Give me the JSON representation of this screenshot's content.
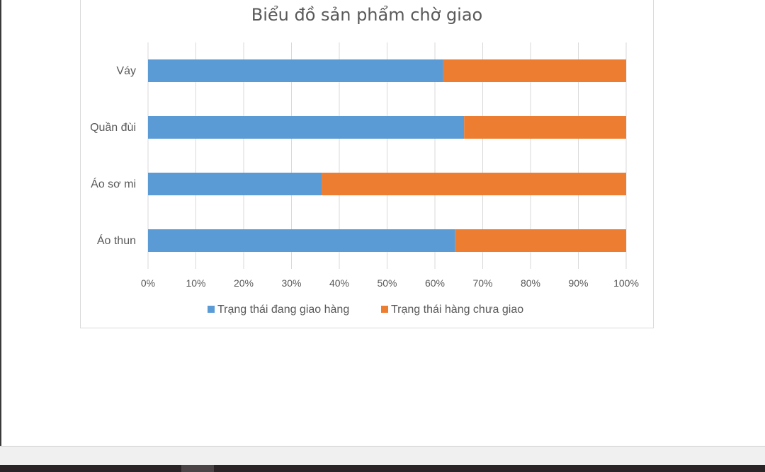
{
  "chart_data": {
    "type": "bar",
    "orientation": "horizontal",
    "stacked": "percent",
    "title": "Biểu đồ sản phẩm chờ giao",
    "categories": [
      "Váy",
      "Quần đùi",
      "Áo sơ mi",
      "Áo thun"
    ],
    "series": [
      {
        "name": "Trạng thái đang giao hàng",
        "color": "#5b9bd5",
        "values": [
          61.7,
          66.1,
          36.3,
          64.2
        ]
      },
      {
        "name": "Trạng thái hàng chưa giao",
        "color": "#ed7d31",
        "values": [
          38.3,
          33.9,
          63.7,
          35.8
        ]
      }
    ],
    "x_ticks": [
      "0%",
      "10%",
      "20%",
      "30%",
      "40%",
      "50%",
      "60%",
      "70%",
      "80%",
      "90%",
      "100%"
    ],
    "xlim": [
      0,
      100
    ],
    "grid": true,
    "legend": "bottom"
  }
}
